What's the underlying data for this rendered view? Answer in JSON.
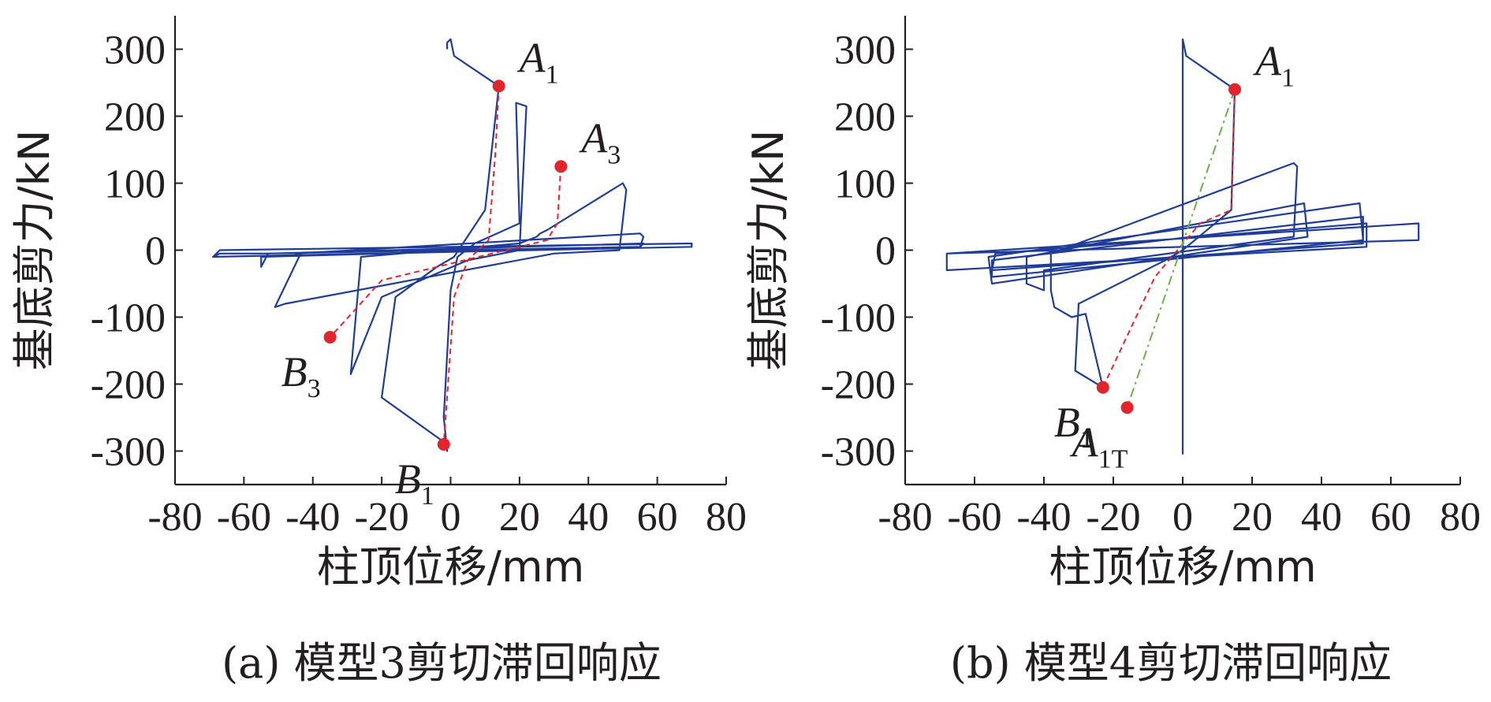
{
  "colors": {
    "hysteresis": "#1f3c99",
    "envelope": "#e0262b",
    "tangent": "#6ab04c",
    "marker": "#e0262b",
    "axis": "#231f20"
  },
  "chart_data": [
    {
      "type": "line",
      "caption": "(a) 模型3剪切滞回响应",
      "xlabel": "柱顶位移/mm",
      "ylabel": "基底剪力/kN",
      "xlim": [
        -80,
        80
      ],
      "ylim": [
        -350,
        350
      ],
      "xticks": [
        -80,
        -60,
        -40,
        -20,
        0,
        20,
        40,
        60,
        80
      ],
      "yticks": [
        -300,
        -200,
        -100,
        0,
        100,
        200,
        300
      ],
      "grid": false,
      "series": [
        {
          "style": "hysteresis",
          "points": [
            [
              -1,
              300
            ],
            [
              -1,
              310
            ],
            [
              0,
              315
            ],
            [
              1,
              290
            ],
            [
              14,
              245
            ],
            [
              10,
              60
            ],
            [
              1,
              -10
            ],
            [
              -4,
              -25
            ],
            [
              -16,
              -70
            ],
            [
              -20,
              -220
            ],
            [
              -1,
              -290
            ],
            [
              -1,
              -300
            ],
            [
              -2,
              -250
            ],
            [
              0,
              -60
            ],
            [
              2,
              -10
            ],
            [
              7,
              10
            ],
            [
              20,
              40
            ],
            [
              19,
              220
            ],
            [
              22,
              215
            ],
            [
              20,
              0
            ],
            [
              5,
              -15
            ],
            [
              -20,
              -70
            ],
            [
              -29,
              -185
            ],
            [
              -26,
              -10
            ],
            [
              20,
              10
            ],
            [
              25,
              20
            ],
            [
              26,
              25
            ],
            [
              28,
              30
            ],
            [
              50,
              100
            ],
            [
              51,
              90
            ],
            [
              49,
              0
            ],
            [
              30,
              -5
            ],
            [
              -48,
              -80
            ],
            [
              -51,
              -85
            ],
            [
              -44,
              -10
            ],
            [
              -45,
              -5
            ],
            [
              55,
              25
            ],
            [
              56,
              20
            ],
            [
              55,
              5
            ],
            [
              -55,
              -10
            ],
            [
              -55,
              -25
            ],
            [
              -53,
              -5
            ],
            [
              56,
              10
            ],
            [
              55,
              5
            ],
            [
              -54,
              -5
            ],
            [
              -67,
              -5
            ],
            [
              -69,
              -10
            ],
            [
              -67,
              0
            ],
            [
              70,
              10
            ],
            [
              70,
              5
            ],
            [
              -69,
              -10
            ]
          ]
        },
        {
          "style": "envelope",
          "points": [
            [
              14,
              245
            ],
            [
              13,
              145
            ],
            [
              11,
              15
            ],
            [
              5,
              -15
            ],
            [
              1,
              -70
            ],
            [
              -2,
              -290
            ]
          ]
        },
        {
          "style": "envelope",
          "points": [
            [
              32,
              125
            ],
            [
              31,
              40
            ],
            [
              28,
              15
            ],
            [
              -20,
              -45
            ],
            [
              -35,
              -130
            ]
          ]
        }
      ],
      "markers": [
        {
          "name": "A1",
          "x": 14,
          "y": 245,
          "label": "A",
          "sub": "1",
          "label_side": "upper-right"
        },
        {
          "name": "A3",
          "x": 32,
          "y": 125,
          "label": "A",
          "sub": "3",
          "label_side": "upper-right"
        },
        {
          "name": "B3",
          "x": -35,
          "y": -130,
          "label": "B",
          "sub": "3",
          "label_side": "lower-left"
        },
        {
          "name": "B1",
          "x": -2,
          "y": -290,
          "label": "B",
          "sub": "1",
          "label_side": "lower-left"
        }
      ]
    },
    {
      "type": "line",
      "caption": "(b) 模型4剪切滞回响应",
      "xlabel": "柱顶位移/mm",
      "ylabel": "基底剪力/kN",
      "xlim": [
        -80,
        80
      ],
      "ylim": [
        -350,
        350
      ],
      "xticks": [
        -80,
        -60,
        -40,
        -20,
        0,
        20,
        40,
        60,
        80
      ],
      "yticks": [
        -300,
        -200,
        -100,
        0,
        100,
        200,
        300
      ],
      "grid": false,
      "series": [
        {
          "style": "hysteresis",
          "points": [
            [
              0,
              -305
            ],
            [
              0,
              315
            ],
            [
              1,
              290
            ],
            [
              15,
              240
            ],
            [
              14,
              60
            ],
            [
              0,
              0
            ],
            [
              -5,
              -15
            ],
            [
              -30,
              -80
            ],
            [
              -31,
              -180
            ],
            [
              -23,
              -205
            ],
            [
              -28,
              -95
            ],
            [
              -32,
              -100
            ],
            [
              -37,
              -85
            ],
            [
              -38,
              -60
            ],
            [
              -38,
              -5
            ],
            [
              32,
              130
            ],
            [
              33,
              125
            ],
            [
              32,
              20
            ],
            [
              -40,
              -30
            ],
            [
              -40,
              -60
            ],
            [
              -45,
              -50
            ],
            [
              -45,
              -10
            ],
            [
              35,
              70
            ],
            [
              36,
              20
            ],
            [
              -55,
              -50
            ],
            [
              -56,
              -10
            ],
            [
              51,
              70
            ],
            [
              52,
              15
            ],
            [
              -55,
              -40
            ],
            [
              -55,
              -15
            ],
            [
              52,
              50
            ],
            [
              52,
              10
            ],
            [
              -55,
              -30
            ],
            [
              -54,
              -5
            ],
            [
              53,
              40
            ],
            [
              53,
              5
            ],
            [
              -68,
              -30
            ],
            [
              -68,
              -5
            ],
            [
              68,
              40
            ],
            [
              68,
              15
            ],
            [
              -68,
              -5
            ]
          ]
        },
        {
          "style": "envelope",
          "points": [
            [
              15,
              240
            ],
            [
              14,
              60
            ],
            [
              5,
              40
            ],
            [
              -8,
              -40
            ],
            [
              -23,
              -205
            ]
          ]
        },
        {
          "style": "tangent",
          "points": [
            [
              15,
              240
            ],
            [
              -16,
              -235
            ]
          ]
        }
      ],
      "markers": [
        {
          "name": "A1",
          "x": 15,
          "y": 240,
          "label": "A",
          "sub": "1",
          "label_side": "upper-right"
        },
        {
          "name": "B1",
          "x": -23,
          "y": -205,
          "label": "B",
          "sub": "1",
          "label_side": "lower-left"
        },
        {
          "name": "A1T",
          "x": -16,
          "y": -235,
          "label": "A",
          "sub": "1T",
          "label_side": "lower-left"
        }
      ]
    }
  ]
}
